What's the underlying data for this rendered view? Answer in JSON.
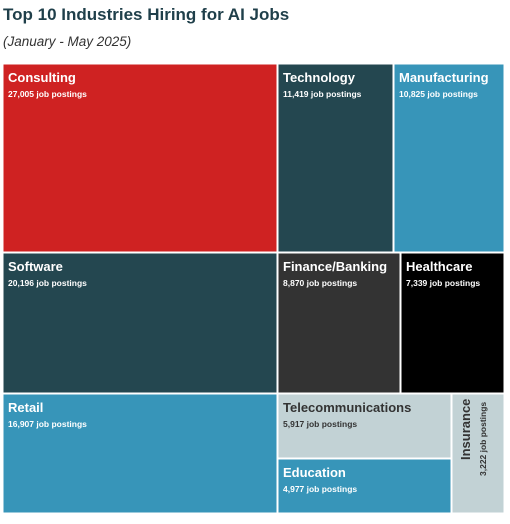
{
  "title": "Top 10 Industries Hiring for AI Jobs",
  "subtitle": "(January - May 2025)",
  "chart_data": {
    "type": "treemap",
    "title": "Top 10 Industries Hiring for AI Jobs",
    "subtitle": "(January - May 2025)",
    "value_suffix": "job postings",
    "items": [
      {
        "name": "Consulting",
        "value": 27005,
        "value_label": "27,005 job postings",
        "color": "#cf2222",
        "text_color": "#ffffff"
      },
      {
        "name": "Technology",
        "value": 11419,
        "value_label": "11,419 job postings",
        "color": "#244750",
        "text_color": "#ffffff"
      },
      {
        "name": "Manufacturing",
        "value": 10825,
        "value_label": "10,825 job postings",
        "color": "#3795b9",
        "text_color": "#ffffff"
      },
      {
        "name": "Software",
        "value": 20196,
        "value_label": "20,196 job postings",
        "color": "#244750",
        "text_color": "#ffffff"
      },
      {
        "name": "Finance/Banking",
        "value": 8870,
        "value_label": "8,870 job postings",
        "color": "#333333",
        "text_color": "#ffffff"
      },
      {
        "name": "Healthcare",
        "value": 7339,
        "value_label": "7,339 job postings",
        "color": "#000000",
        "text_color": "#ffffff"
      },
      {
        "name": "Retail",
        "value": 16907,
        "value_label": "16,907 job postings",
        "color": "#3795b9",
        "text_color": "#ffffff"
      },
      {
        "name": "Telecommunications",
        "value": 5917,
        "value_label": "5,917 job postings",
        "color": "#c2d2d5",
        "text_color": "#333333"
      },
      {
        "name": "Education",
        "value": 4977,
        "value_label": "4,977 job postings",
        "color": "#3795b9",
        "text_color": "#ffffff"
      },
      {
        "name": "Insurance",
        "value": 3222,
        "value_label": "3,222 job postings",
        "color": "#c2d2d5",
        "text_color": "#333333",
        "rotated": true
      }
    ]
  }
}
